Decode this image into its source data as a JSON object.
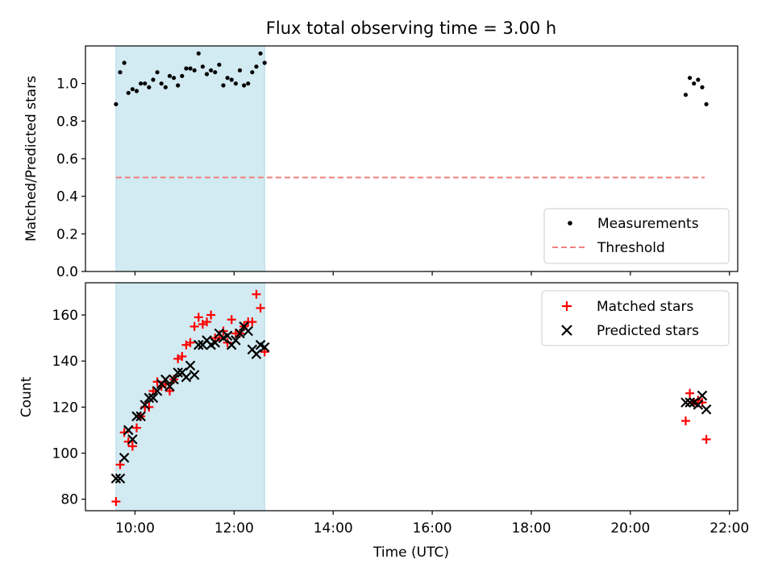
{
  "figure": {
    "title": "Flux total observing time = 3.00 h"
  },
  "colors": {
    "window": "#add8e6",
    "measure": "#000000",
    "threshold": "#f08080",
    "matched": "#ff0000",
    "predicted": "#000000"
  },
  "chart_data": [
    {
      "type": "scatter",
      "panel": "top",
      "xlabel": "",
      "ylabel": "Matched/Predicted stars",
      "ylim": [
        0,
        1.2
      ],
      "y_ticks": [
        0.0,
        0.2,
        0.4,
        0.6,
        0.8,
        1.0
      ],
      "y_tick_labels": [
        "0.0",
        "0.2",
        "0.4",
        "0.6",
        "0.8",
        "1.0"
      ],
      "x_tick_labels_shown": false,
      "legend": {
        "placement": "lower-right",
        "entries": [
          "Measurements",
          "Threshold"
        ]
      },
      "observing_window": [
        "09:37",
        "12:37"
      ],
      "threshold": {
        "name": "Threshold",
        "value": 0.5,
        "x": [
          "09:37",
          "21:30"
        ]
      },
      "series": [
        {
          "name": "Measurements",
          "marker": "dot",
          "x": [
            "09:37",
            "09:42",
            "09:47",
            "09:52",
            "09:57",
            "10:02",
            "10:07",
            "10:12",
            "10:17",
            "10:22",
            "10:27",
            "10:32",
            "10:37",
            "10:42",
            "10:47",
            "10:52",
            "10:57",
            "11:02",
            "11:07",
            "11:12",
            "11:17",
            "11:22",
            "11:27",
            "11:32",
            "11:37",
            "11:42",
            "11:47",
            "11:52",
            "11:57",
            "12:02",
            "12:07",
            "12:12",
            "12:17",
            "12:22",
            "12:27",
            "12:32",
            "12:37",
            "21:07",
            "21:12",
            "21:17",
            "21:22",
            "21:27",
            "21:32"
          ],
          "y": [
            0.89,
            1.06,
            1.11,
            0.95,
            0.97,
            0.96,
            1.0,
            1.0,
            0.98,
            1.02,
            1.06,
            1.0,
            0.98,
            1.04,
            1.03,
            0.99,
            1.04,
            1.08,
            1.08,
            1.07,
            1.16,
            1.09,
            1.05,
            1.07,
            1.06,
            1.1,
            0.99,
            1.03,
            1.02,
            1.0,
            1.07,
            0.99,
            1.0,
            1.06,
            1.09,
            1.16,
            1.11,
            0.94,
            1.03,
            1.0,
            1.02,
            0.98,
            0.89
          ]
        }
      ]
    },
    {
      "type": "scatter",
      "panel": "bottom",
      "xlabel": "Time (UTC)",
      "ylabel": "Count",
      "ylim": [
        75,
        174
      ],
      "y_ticks": [
        80,
        100,
        120,
        140,
        160
      ],
      "y_tick_labels": [
        "80",
        "100",
        "120",
        "140",
        "160"
      ],
      "xlim": [
        "09:00",
        "22:10"
      ],
      "x_ticks": [
        "10:00",
        "12:00",
        "14:00",
        "16:00",
        "18:00",
        "20:00",
        "22:00"
      ],
      "x_tick_labels": [
        "10:00",
        "12:00",
        "14:00",
        "16:00",
        "18:00",
        "20:00",
        "22:00"
      ],
      "legend": {
        "placement": "upper-right",
        "entries": [
          "Matched stars",
          "Predicted stars"
        ]
      },
      "observing_window": [
        "09:37",
        "12:37"
      ],
      "series": [
        {
          "name": "Matched stars",
          "marker": "plus",
          "x": [
            "09:37",
            "09:42",
            "09:47",
            "09:52",
            "09:57",
            "10:02",
            "10:07",
            "10:12",
            "10:17",
            "10:22",
            "10:27",
            "10:32",
            "10:37",
            "10:42",
            "10:47",
            "10:52",
            "10:57",
            "11:02",
            "11:07",
            "11:12",
            "11:17",
            "11:22",
            "11:27",
            "11:32",
            "11:37",
            "11:42",
            "11:47",
            "11:52",
            "11:57",
            "12:02",
            "12:07",
            "12:12",
            "12:17",
            "12:22",
            "12:27",
            "12:32",
            "12:37",
            "21:07",
            "21:12",
            "21:17",
            "21:22",
            "21:27",
            "21:32"
          ],
          "y": [
            79,
            95,
            109,
            105,
            103,
            111,
            116,
            120,
            120,
            127,
            131,
            129,
            130,
            127,
            132,
            141,
            142,
            147,
            148,
            155,
            159,
            156,
            157,
            160,
            150,
            150,
            153,
            148,
            158,
            152,
            152,
            155,
            157,
            157,
            169,
            163,
            144,
            114,
            126,
            122,
            123,
            122,
            106
          ]
        },
        {
          "name": "Predicted stars",
          "marker": "x",
          "x": [
            "09:37",
            "09:42",
            "09:47",
            "09:52",
            "09:57",
            "10:02",
            "10:07",
            "10:12",
            "10:17",
            "10:22",
            "10:27",
            "10:32",
            "10:37",
            "10:42",
            "10:47",
            "10:52",
            "10:57",
            "11:02",
            "11:07",
            "11:12",
            "11:17",
            "11:22",
            "11:27",
            "11:32",
            "11:37",
            "11:42",
            "11:47",
            "11:52",
            "11:57",
            "12:02",
            "12:07",
            "12:12",
            "12:17",
            "12:22",
            "12:27",
            "12:32",
            "12:37",
            "21:07",
            "21:12",
            "21:17",
            "21:22",
            "21:27",
            "21:32"
          ],
          "y": [
            89,
            89,
            98,
            110,
            106,
            116,
            116,
            121,
            124,
            124,
            127,
            130,
            132,
            129,
            132,
            135,
            135,
            133,
            138,
            134,
            147,
            147,
            149,
            147,
            148,
            152,
            150,
            151,
            147,
            149,
            152,
            155,
            153,
            145,
            143,
            147,
            146,
            122,
            122,
            122,
            121,
            125,
            119
          ]
        }
      ]
    }
  ]
}
